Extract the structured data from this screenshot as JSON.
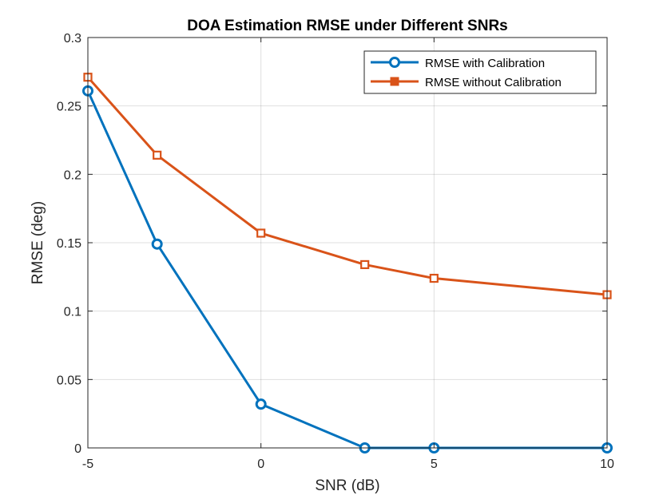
{
  "chart_data": {
    "type": "line",
    "title": "DOA Estimation RMSE under Different SNRs",
    "xlabel": "SNR (dB)",
    "ylabel": "RMSE (deg)",
    "x": [
      -5,
      -3,
      0,
      3,
      5,
      10
    ],
    "xlim": [
      -5,
      10
    ],
    "ylim": [
      0,
      0.3
    ],
    "xticks": [
      -5,
      0,
      5,
      10
    ],
    "xtick_labels": [
      "-5",
      "0",
      "5",
      "10"
    ],
    "yticks": [
      0,
      0.05,
      0.1,
      0.15,
      0.2,
      0.25,
      0.3
    ],
    "ytick_labels": [
      "0",
      "0.05",
      "0.1",
      "0.15",
      "0.2",
      "0.25",
      "0.3"
    ],
    "grid": true,
    "legend_position": "top-right",
    "series": [
      {
        "name": "RMSE with Calibration",
        "color": "#0072BD",
        "marker": "circle",
        "values": [
          0.261,
          0.149,
          0.032,
          0.0,
          0.0,
          0.0
        ]
      },
      {
        "name": "RMSE without Calibration",
        "color": "#D95319",
        "marker": "square",
        "values": [
          0.271,
          0.214,
          0.157,
          0.134,
          0.124,
          0.112
        ]
      }
    ]
  }
}
